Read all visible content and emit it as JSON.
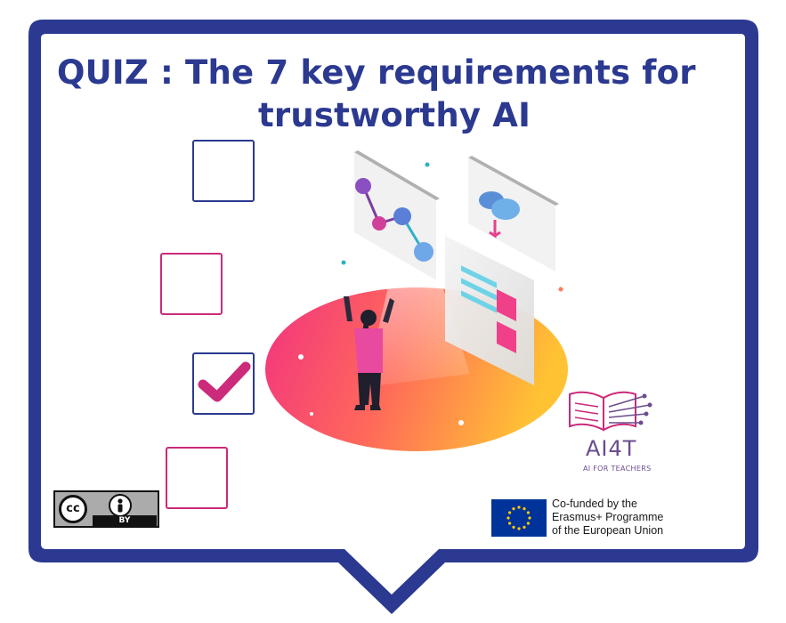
{
  "title": {
    "line1": "QUIZ : The 7 key requirements for",
    "line2": "trustworthy AI"
  },
  "colors": {
    "frame": "#2b3990",
    "title": "#2b3990",
    "accent_pink": "#cc2a7a",
    "ai4t_purple": "#6b4c8e",
    "eu_blue": "#003399"
  },
  "checkboxes": [
    {
      "checked": false,
      "color": "#2b3990"
    },
    {
      "checked": false,
      "color": "#cc2a7a"
    },
    {
      "checked": true,
      "color": "#2b3990"
    },
    {
      "checked": false,
      "color": "#cc2a7a"
    }
  ],
  "license": {
    "cc_label": "cc",
    "by_label": "BY"
  },
  "ai4t": {
    "name": "AI4T",
    "subtitle": "AI FOR TEACHERS"
  },
  "eu": {
    "line1": "Co-funded by the",
    "line2": "Erasmus+ Programme",
    "line3": "of the European Union"
  }
}
